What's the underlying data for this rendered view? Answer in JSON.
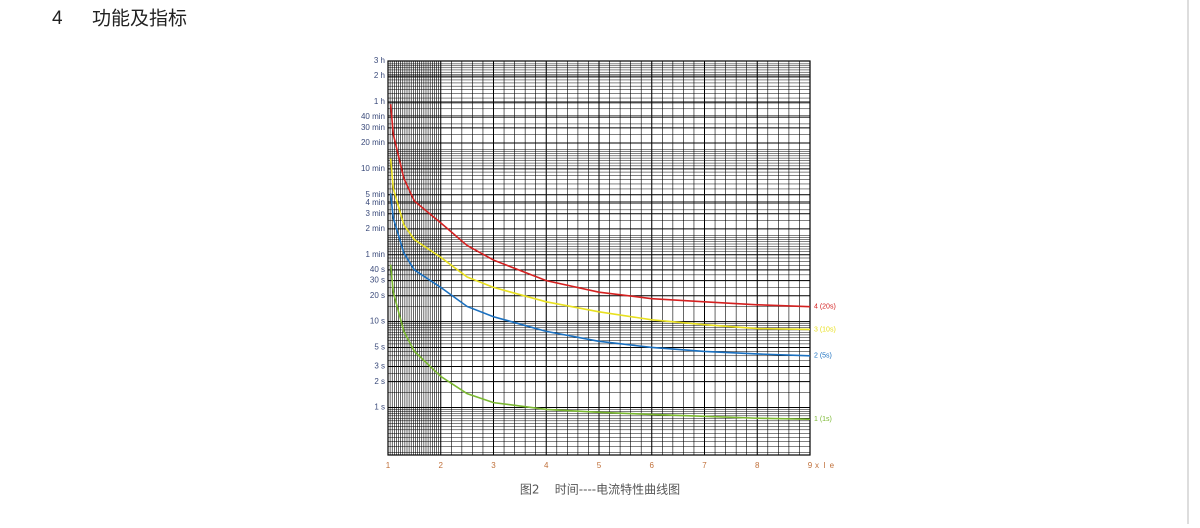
{
  "heading": {
    "number": "4",
    "title": "功能及指标"
  },
  "chart_data": {
    "type": "line",
    "x_label": "x I e",
    "xlim": [
      1,
      9
    ],
    "xticks": [
      1,
      2,
      3,
      4,
      5,
      6,
      7,
      8,
      9
    ],
    "ylim": [
      0.28,
      10800
    ],
    "log_y": true,
    "grid": true,
    "yticks": [
      {
        "value": 10800,
        "label": "3 h"
      },
      {
        "value": 7200,
        "label": "2 h"
      },
      {
        "value": 3600,
        "label": "1 h"
      },
      {
        "value": 2400,
        "label": "40 min"
      },
      {
        "value": 1800,
        "label": "30 min"
      },
      {
        "value": 1200,
        "label": "20 min"
      },
      {
        "value": 600,
        "label": "10 min"
      },
      {
        "value": 300,
        "label": "5 min"
      },
      {
        "value": 240,
        "label": "4 min"
      },
      {
        "value": 180,
        "label": "3 min"
      },
      {
        "value": 120,
        "label": "2 min"
      },
      {
        "value": 60,
        "label": "1 min"
      },
      {
        "value": 40,
        "label": "40 s"
      },
      {
        "value": 30,
        "label": "30 s"
      },
      {
        "value": 20,
        "label": "20 s"
      },
      {
        "value": 10,
        "label": "10 s"
      },
      {
        "value": 5,
        "label": "5 s"
      },
      {
        "value": 3,
        "label": "3 s"
      },
      {
        "value": 2,
        "label": "2 s"
      },
      {
        "value": 1,
        "label": "1 s"
      }
    ],
    "x": [
      1.05,
      1.1,
      1.3,
      1.5,
      2,
      2.5,
      3,
      4,
      5,
      6,
      7,
      8,
      9
    ],
    "series": [
      {
        "name": "4 (20s)",
        "color": "#d42020",
        "values": [
          3400,
          1520,
          465,
          253,
          141,
          77,
          52,
          30,
          22,
          18.5,
          17,
          15.7,
          14.9
        ]
      },
      {
        "name": "3 (10s)",
        "color": "#e8e020",
        "values": [
          790,
          355,
          134,
          90,
          56,
          33,
          25,
          17,
          13,
          10.5,
          9.2,
          8.3,
          8.1
        ]
      },
      {
        "name": "2 (5s)",
        "color": "#1a70c0",
        "values": [
          310,
          161,
          63,
          40,
          25,
          15,
          11.4,
          7.7,
          5.9,
          5.0,
          4.5,
          4.2,
          4.0
        ]
      },
      {
        "name": "1 (1s)",
        "color": "#7ab830",
        "values": [
          46,
          22,
          7.7,
          4.5,
          2.3,
          1.45,
          1.14,
          0.95,
          0.88,
          0.83,
          0.79,
          0.75,
          0.73
        ]
      }
    ]
  },
  "caption": "图2    时间----电流特性曲线图"
}
